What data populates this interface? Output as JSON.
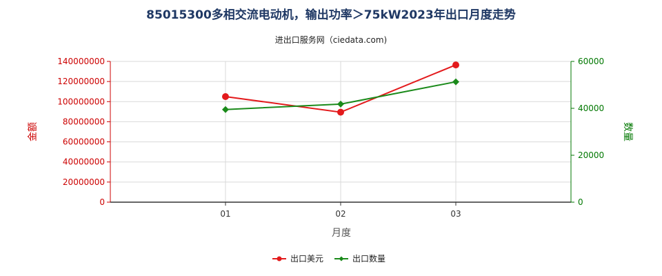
{
  "chart_data": {
    "type": "line",
    "title": "85015300多相交流电动机，输出功率＞75kW2023年出口月度走势",
    "subtitle": "进出口服务网（ciedata.com)",
    "xlabel": "月度",
    "ylabel_left": "金额",
    "ylabel_right": "数量",
    "categories": [
      "01",
      "02",
      "03"
    ],
    "y_left_ticks": [
      "0",
      "20000000",
      "40000000",
      "60000000",
      "80000000",
      "100000000",
      "120000000",
      "140000000"
    ],
    "y_right_ticks": [
      "0",
      "20000",
      "40000",
      "60000"
    ],
    "ylim_left": [
      0,
      140000000
    ],
    "ylim_right": [
      0,
      60000
    ],
    "series": [
      {
        "name": "出口美元",
        "axis": "left",
        "color": "#e31a1c",
        "marker": "circle",
        "values": [
          105000000,
          89500000,
          136500000
        ]
      },
      {
        "name": "出口数量",
        "axis": "right",
        "color": "#1a8a1a",
        "marker": "diamond",
        "values": [
          39500,
          41800,
          51300
        ]
      }
    ],
    "grid": true,
    "legend_position": "bottom"
  }
}
